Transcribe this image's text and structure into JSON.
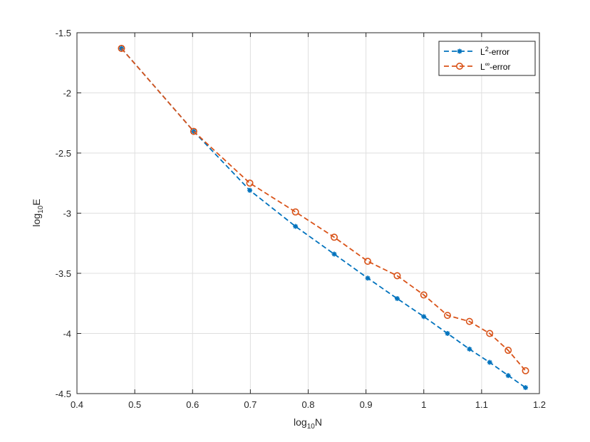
{
  "chart_data": {
    "type": "line",
    "xlabel": {
      "base": "log",
      "sub": "10",
      "tail": "N"
    },
    "ylabel": {
      "base": "log",
      "sub": "10",
      "tail": "E"
    },
    "xlim": [
      0.4,
      1.2
    ],
    "ylim": [
      -4.5,
      -1.5
    ],
    "xticks": [
      "0.4",
      "0.5",
      "0.6",
      "0.7",
      "0.8",
      "0.9",
      "1",
      "1.1",
      "1.2"
    ],
    "yticks": [
      "-1.5",
      "-2",
      "-2.5",
      "-3",
      "-3.5",
      "-4",
      "-4.5"
    ],
    "xtick_values": [
      0.4,
      0.5,
      0.6,
      0.7,
      0.8,
      0.9,
      1.0,
      1.1,
      1.2
    ],
    "ytick_values": [
      -1.5,
      -2,
      -2.5,
      -3,
      -3.5,
      -4,
      -4.5
    ],
    "grid": true,
    "legend_position": "top-right",
    "series": [
      {
        "legend": {
          "base": "L",
          "sup": "2",
          "tail": "-error"
        },
        "color": "#0072BD",
        "line_style": "dashed",
        "marker": "asterisk",
        "x": [
          0.477,
          0.602,
          0.699,
          0.778,
          0.845,
          0.903,
          0.954,
          1.0,
          1.041,
          1.079,
          1.114,
          1.146,
          1.176
        ],
        "y": [
          -1.63,
          -2.32,
          -2.81,
          -3.11,
          -3.34,
          -3.54,
          -3.71,
          -3.86,
          -4.0,
          -4.13,
          -4.24,
          -4.35,
          -4.45
        ]
      },
      {
        "legend": {
          "base": "L",
          "sup": "∞",
          "tail": "-error"
        },
        "color": "#D95319",
        "line_style": "dashed",
        "marker": "circle",
        "x": [
          0.477,
          0.602,
          0.699,
          0.778,
          0.845,
          0.903,
          0.954,
          1.0,
          1.041,
          1.079,
          1.114,
          1.146,
          1.176
        ],
        "y": [
          -1.63,
          -2.32,
          -2.75,
          -2.99,
          -3.2,
          -3.4,
          -3.52,
          -3.68,
          -3.85,
          -3.9,
          -4.0,
          -4.14,
          -4.31
        ]
      }
    ]
  }
}
